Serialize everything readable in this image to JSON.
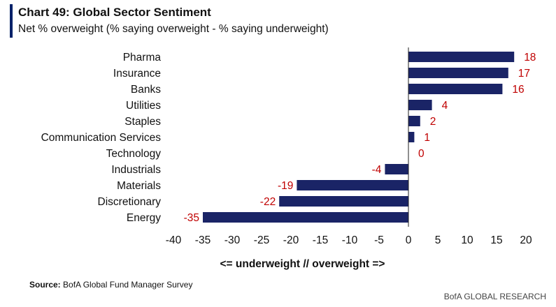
{
  "header": {
    "title": "Chart 49: Global Sector Sentiment",
    "subtitle": "Net % overweight (% saying overweight - % saying underweight)"
  },
  "chart_data": {
    "type": "bar",
    "orientation": "horizontal",
    "categories": [
      "Pharma",
      "Insurance",
      "Banks",
      "Utilities",
      "Staples",
      "Communication Services",
      "Technology",
      "Industrials",
      "Materials",
      "Discretionary",
      "Energy"
    ],
    "values": [
      18,
      17,
      16,
      4,
      2,
      1,
      0,
      -4,
      -19,
      -22,
      -35
    ],
    "xlim": [
      -40,
      20
    ],
    "xticks": [
      -40,
      -35,
      -30,
      -25,
      -20,
      -15,
      -10,
      -5,
      0,
      5,
      10,
      15,
      20
    ],
    "xlabel": "<= underweight // overweight =>",
    "bar_color": "#1a2466",
    "label_color": "#c00000",
    "title": "Chart 49: Global Sector Sentiment"
  },
  "footer": {
    "source_label": "Source:",
    "source_text": " BofA Global Fund Manager Survey",
    "brand": "BofA GLOBAL RESEARCH"
  }
}
